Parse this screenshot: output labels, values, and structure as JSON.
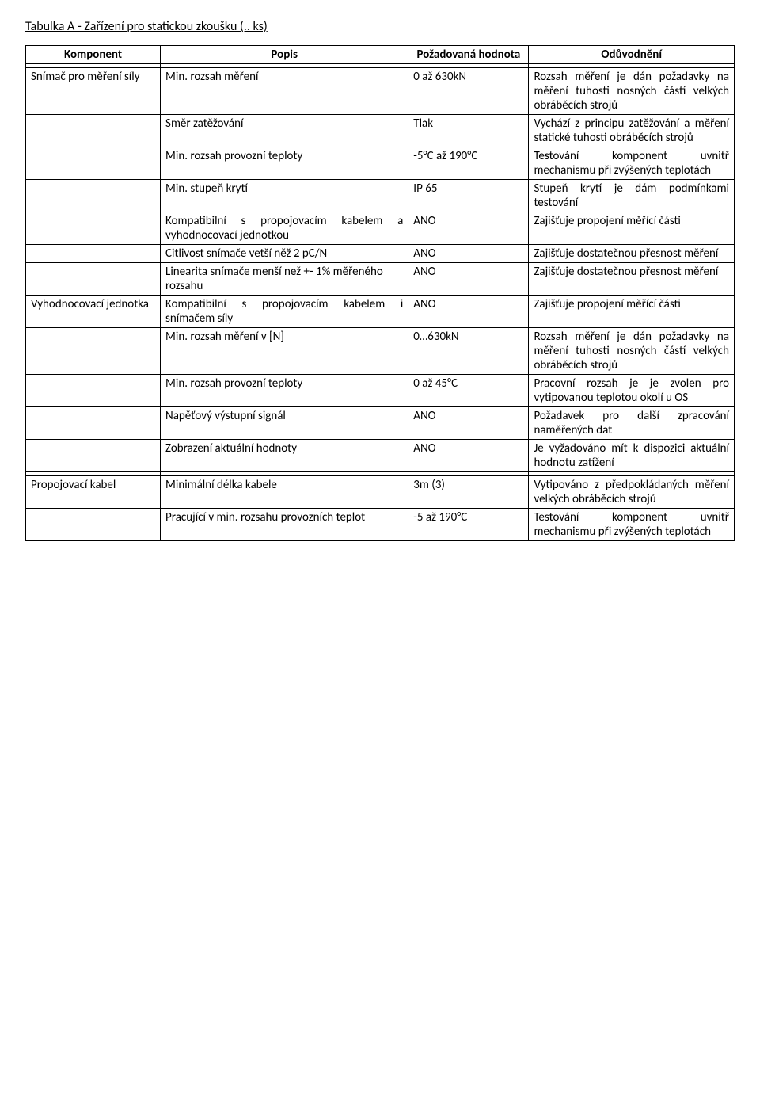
{
  "title": "Tabulka A - Zařízení pro statickou zkoušku (.. ks)",
  "headers": {
    "komponent": "Komponent",
    "popis": "Popis",
    "hodnota": "Požadovaná hodnota",
    "oduvodneni": "Odůvodnění"
  },
  "rows": [
    {
      "k": "Snímač pro měření síly",
      "p": "Min. rozsah měření",
      "h": "0 až 630kN",
      "o": "Rozsah měření je dán požadavky na měření tuhosti nosných částí velkých obráběcích strojů"
    },
    {
      "k": "",
      "p": "Směr zatěžování",
      "h": "Tlak",
      "o": "Vychází z principu zatěžování a měření statické tuhosti obráběcích strojů"
    },
    {
      "k": "",
      "p": "Min. rozsah provozní teploty",
      "h": "-5°C až 190°C",
      "o": "Testování komponent uvnitř mechanismu při zvýšených teplotách"
    },
    {
      "k": "",
      "p": "Min. stupeň krytí",
      "h": "IP 65",
      "o": "Stupeň krytí je dám podmínkami testování"
    },
    {
      "k": "",
      "p": "Kompatibilní s propojovacím kabelem a vyhodnocovací jednotkou",
      "h": "ANO",
      "o": "Zajišťuje propojení měřící části"
    },
    {
      "k": "",
      "p": "Citlivost snímače vetší něž 2 pC/N",
      "h": "ANO",
      "o": "Zajišťuje dostatečnou přesnost měření"
    },
    {
      "k": "",
      "p": "Linearita snímače menší než +- 1% měřeného rozsahu",
      "h": "ANO",
      "o": "Zajišťuje dostatečnou přesnost měření"
    },
    {
      "k": "Vyhodnocovací jednotka",
      "p": "Kompatibilní s propojovacím kabelem i snímačem síly",
      "h": "ANO",
      "o": "Zajišťuje propojení měřící části"
    },
    {
      "k": "",
      "p": "Min. rozsah měření v [N]",
      "h": "0…630kN",
      "o": "Rozsah měření je dán požadavky na měření tuhosti nosných částí velkých obráběcích strojů"
    },
    {
      "k": "",
      "p": "Min. rozsah provozní teploty",
      "h": "0 až 45°C",
      "o": "Pracovní rozsah je je zvolen pro vytipovanou teplotou okolí u OS"
    },
    {
      "k": "",
      "p": "Napěťový výstupní signál",
      "h": "ANO",
      "o": "Požadavek pro další zpracování naměřených dat"
    },
    {
      "k": "",
      "p": "Zobrazení aktuální hodnoty",
      "h": "ANO",
      "o": "Je vyžadováno mít k dispozici aktuální hodnotu zatížení"
    }
  ],
  "rows2": [
    {
      "k": "Propojovací kabel",
      "p": "Minimální délka kabele",
      "h": "3m (3)",
      "o": "Vytipováno z předpokládaných měření velkých obráběcích strojů"
    },
    {
      "k": "",
      "p": "Pracující v min. rozsahu provozních teplot",
      "h": "-5 až 190°C",
      "o": "Testování komponent uvnitř mechanismu při zvýšených teplotách"
    }
  ]
}
